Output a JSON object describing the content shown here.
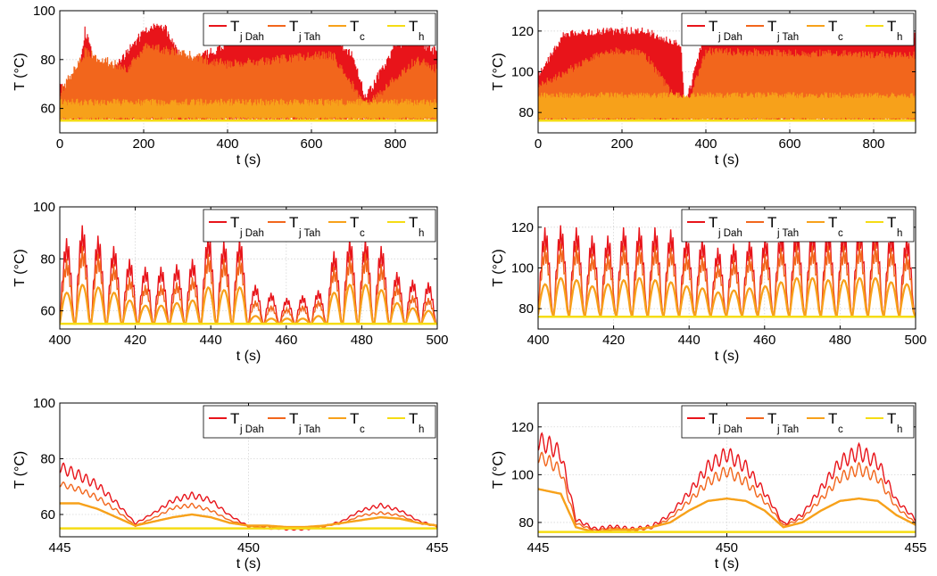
{
  "colors": {
    "tj_dah": "#e8141a",
    "tj_tah": "#f2661c",
    "tc": "#f7a11a",
    "th": "#f5dc14"
  },
  "legend_labels": [
    {
      "main": "T",
      "sub": "j Dah"
    },
    {
      "main": "T",
      "sub": "j Tah"
    },
    {
      "main": "T",
      "sub": "c"
    },
    {
      "main": "T",
      "sub": "h"
    }
  ],
  "chart_data": [
    {
      "type": "line",
      "xlabel": "t (s)",
      "ylabel": "T (°C)",
      "xlim": [
        0,
        900
      ],
      "ylim": [
        50,
        100
      ],
      "xticks": [
        0,
        200,
        400,
        600,
        800
      ],
      "yticks": [
        60,
        80,
        100
      ],
      "grid": true,
      "legend": "top-right",
      "series": [
        {
          "name": "Tj Dah",
          "envelope_peaks": [
            [
              0,
              72
            ],
            [
              40,
              65
            ],
            [
              60,
              94
            ],
            [
              100,
              70
            ],
            [
              160,
              85
            ],
            [
              210,
              95
            ],
            [
              250,
              95
            ],
            [
              300,
              80
            ],
            [
              400,
              88
            ],
            [
              450,
              92
            ],
            [
              520,
              90
            ],
            [
              600,
              90
            ],
            [
              650,
              92
            ],
            [
              700,
              83
            ],
            [
              730,
              66
            ],
            [
              800,
              88
            ],
            [
              850,
              90
            ],
            [
              900,
              85
            ]
          ],
          "base": 55
        },
        {
          "name": "Tj Tah",
          "envelope_peaks": [
            [
              0,
              68
            ],
            [
              60,
              85
            ],
            [
              160,
              78
            ],
            [
              210,
              88
            ],
            [
              250,
              86
            ],
            [
              400,
              80
            ],
            [
              520,
              82
            ],
            [
              650,
              84
            ],
            [
              730,
              63
            ],
            [
              850,
              82
            ],
            [
              900,
              78
            ]
          ],
          "base": 55
        },
        {
          "name": "Tc",
          "level": 64,
          "base": 55
        },
        {
          "name": "Th",
          "values": 55
        }
      ]
    },
    {
      "type": "line",
      "xlabel": "t (s)",
      "ylabel": "T (°C)",
      "xlim": [
        0,
        900
      ],
      "ylim": [
        70,
        130
      ],
      "xticks": [
        0,
        200,
        400,
        600,
        800
      ],
      "yticks": [
        80,
        100,
        120
      ],
      "grid": true,
      "legend": "top-right",
      "series": [
        {
          "name": "Tj Dah",
          "envelope_peaks": [
            [
              0,
              100
            ],
            [
              60,
              120
            ],
            [
              160,
              122
            ],
            [
              250,
              122
            ],
            [
              340,
              116
            ],
            [
              350,
              85
            ],
            [
              400,
              122
            ],
            [
              600,
              122
            ],
            [
              700,
              122
            ],
            [
              900,
              120
            ]
          ],
          "base": 76
        },
        {
          "name": "Tj Tah",
          "envelope_peaks": [
            [
              0,
              95
            ],
            [
              160,
              112
            ],
            [
              250,
              112
            ],
            [
              350,
              82
            ],
            [
              400,
              112
            ],
            [
              900,
              110
            ]
          ],
          "base": 76
        },
        {
          "name": "Tc",
          "level": 90,
          "base": 76
        },
        {
          "name": "Th",
          "values": 76
        }
      ]
    },
    {
      "type": "line",
      "xlabel": "t (s)",
      "ylabel": "T (°C)",
      "xlim": [
        400,
        500
      ],
      "ylim": [
        53,
        100
      ],
      "xticks": [
        400,
        420,
        440,
        460,
        480,
        500
      ],
      "yticks": [
        60,
        80,
        100
      ],
      "grid": true,
      "legend": "top-right",
      "series": [
        {
          "name": "Tj Dah",
          "peaks": [
            88,
            93,
            89,
            85,
            80,
            77,
            77,
            78,
            80,
            90,
            87,
            88,
            70,
            67,
            65,
            66,
            68,
            83,
            88,
            88,
            85,
            75,
            72,
            71
          ],
          "min": 55
        },
        {
          "name": "Tj Tah",
          "peaks": [
            80,
            85,
            82,
            78,
            73,
            70,
            70,
            71,
            73,
            82,
            80,
            81,
            64,
            62,
            61,
            62,
            64,
            77,
            81,
            82,
            78,
            70,
            66,
            65
          ],
          "min": 55
        },
        {
          "name": "Tc",
          "peaks": [
            67,
            70,
            69,
            67,
            64,
            62,
            62,
            63,
            64,
            69,
            68,
            69,
            58,
            57,
            57,
            57,
            58,
            67,
            70,
            70,
            68,
            63,
            61,
            60
          ],
          "min": 55
        },
        {
          "name": "Th",
          "values": 55
        }
      ]
    },
    {
      "type": "line",
      "xlabel": "t (s)",
      "ylabel": "T (°C)",
      "xlim": [
        400,
        500
      ],
      "ylim": [
        70,
        130
      ],
      "xticks": [
        400,
        420,
        440,
        460,
        480,
        500
      ],
      "yticks": [
        80,
        100,
        120
      ],
      "grid": true,
      "legend": "top-right",
      "series": [
        {
          "name": "Tj Dah",
          "peaks": [
            120,
            121,
            120,
            116,
            116,
            120,
            120,
            120,
            119,
            116,
            115,
            110,
            112,
            114,
            116,
            119,
            120,
            120,
            120,
            120,
            121,
            121,
            119,
            116
          ],
          "min": 77
        },
        {
          "name": "Tj Tah",
          "peaks": [
            111,
            112,
            111,
            107,
            107,
            111,
            111,
            111,
            110,
            107,
            106,
            102,
            104,
            106,
            107,
            110,
            111,
            111,
            111,
            111,
            112,
            112,
            110,
            107
          ],
          "min": 77
        },
        {
          "name": "Tc",
          "peaks": [
            92,
            95,
            94,
            91,
            92,
            94,
            95,
            94,
            93,
            91,
            90,
            88,
            89,
            90,
            91,
            93,
            95,
            95,
            94,
            94,
            95,
            95,
            93,
            92
          ],
          "min": 77
        },
        {
          "name": "Th",
          "values": 76
        }
      ]
    },
    {
      "type": "line",
      "xlabel": "t (s)",
      "ylabel": "T (°C)",
      "xlim": [
        445,
        455
      ],
      "ylim": [
        52,
        100
      ],
      "xticks": [
        445,
        450,
        455
      ],
      "yticks": [
        60,
        80,
        100
      ],
      "grid": true,
      "legend": "top-right",
      "series": [
        {
          "name": "Tj Dah",
          "x": [
            445,
            445.5,
            446,
            446.5,
            447,
            447.5,
            448,
            448.5,
            449,
            449.5,
            450,
            450.5,
            451,
            451.5,
            452,
            452.5,
            453,
            453.5,
            454,
            454.5,
            455
          ],
          "values": [
            79,
            76,
            72,
            65,
            57,
            61,
            66,
            68,
            66,
            60,
            56,
            56,
            55,
            55,
            56,
            58,
            62,
            64,
            62,
            58,
            56
          ],
          "ripple": 4
        },
        {
          "name": "Tj Tah",
          "x": [
            445,
            445.5,
            446,
            446.5,
            447,
            447.5,
            448,
            448.5,
            449,
            449.5,
            450,
            450.5,
            451,
            451.5,
            452,
            452.5,
            453,
            453.5,
            454,
            454.5,
            455
          ],
          "values": [
            72,
            70,
            67,
            62,
            56,
            59,
            63,
            64,
            62,
            58,
            56,
            55,
            55,
            55,
            56,
            57,
            60,
            61,
            60,
            57,
            56
          ],
          "ripple": 2
        },
        {
          "name": "Tc",
          "x": [
            445,
            445.5,
            446,
            446.5,
            447,
            447.5,
            448,
            448.5,
            449,
            449.5,
            450,
            450.5,
            451,
            451.5,
            452,
            452.5,
            453,
            453.5,
            454,
            454.5,
            455
          ],
          "values": [
            64,
            64,
            62,
            59,
            56,
            57.5,
            59,
            60,
            59,
            57,
            56,
            56,
            55.5,
            55.5,
            56,
            57,
            58,
            59,
            58.5,
            57,
            56
          ]
        },
        {
          "name": "Th",
          "values": 55
        }
      ]
    },
    {
      "type": "line",
      "xlabel": "t (s)",
      "ylabel": "T (°C)",
      "xlim": [
        445,
        455
      ],
      "ylim": [
        74,
        130
      ],
      "xticks": [
        445,
        450,
        455
      ],
      "yticks": [
        80,
        100,
        120
      ],
      "grid": true,
      "legend": "top-right",
      "series": [
        {
          "name": "Tj Dah",
          "x": [
            445,
            445.3,
            445.6,
            446,
            446.5,
            447,
            447.5,
            448,
            448.5,
            449,
            449.5,
            450,
            450.5,
            451,
            451.5,
            452,
            452.5,
            453,
            453.5,
            454,
            454.5,
            455
          ],
          "values": [
            118,
            116,
            112,
            82,
            78,
            79,
            78,
            79,
            84,
            94,
            106,
            112,
            106,
            94,
            80,
            84,
            96,
            108,
            113,
            108,
            90,
            82
          ],
          "ripple": 10
        },
        {
          "name": "Tj Tah",
          "x": [
            445,
            445.3,
            445.6,
            446,
            446.5,
            447,
            447.5,
            448,
            448.5,
            449,
            449.5,
            450,
            450.5,
            451,
            451.5,
            452,
            452.5,
            453,
            453.5,
            454,
            454.5,
            455
          ],
          "values": [
            110,
            108,
            104,
            80,
            77,
            78,
            77,
            78,
            82,
            90,
            99,
            104,
            99,
            90,
            79,
            82,
            91,
            101,
            105,
            101,
            87,
            80
          ],
          "ripple": 5
        },
        {
          "name": "Tc",
          "x": [
            445,
            445.3,
            445.6,
            446,
            446.5,
            447,
            447.5,
            448,
            448.5,
            449,
            449.5,
            450,
            450.5,
            451,
            451.5,
            452,
            452.5,
            453,
            453.5,
            454,
            454.5,
            455
          ],
          "values": [
            94,
            93,
            92,
            78,
            76,
            77,
            77,
            78,
            80,
            85,
            89,
            90,
            89,
            85,
            78,
            80,
            85,
            89,
            90,
            89,
            83,
            79
          ]
        },
        {
          "name": "Th",
          "values": 76
        }
      ]
    }
  ]
}
